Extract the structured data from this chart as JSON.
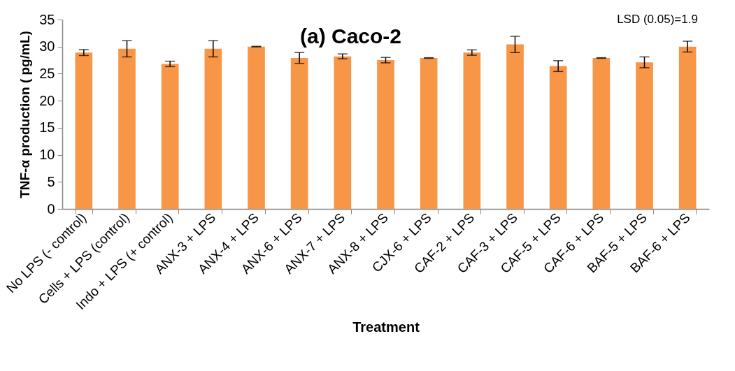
{
  "chart_data": {
    "type": "bar",
    "title": "(a) Caco-2",
    "xlabel": "Treatment",
    "ylabel": "TNF-α production ( pg/mL)",
    "categories": [
      "No LPS (- control)",
      "Cells + LPS (control)",
      "Indo + LPS (+ control)",
      "ANX-3 + LPS",
      "ANX-4 + LPS",
      "ANX-6 + LPS",
      "ANX-7 + LPS",
      "ANX-8 + LPS",
      "CJX-6 + LPS",
      "CAF-2 + LPS",
      "CAF-3 + LPS",
      "CAF-5 + LPS",
      "CAF-6 + LPS",
      "BAF-5 + LPS",
      "BAF-6 + LPS"
    ],
    "values": [
      28.9,
      29.6,
      26.8,
      29.6,
      30.0,
      27.9,
      28.2,
      27.5,
      27.9,
      28.9,
      30.4,
      26.4,
      27.9,
      27.1,
      30.0
    ],
    "errors": [
      0.55,
      1.5,
      0.5,
      1.5,
      0.05,
      1.0,
      0.45,
      0.5,
      0.05,
      0.5,
      1.5,
      1.0,
      0.05,
      1.0,
      1.0
    ],
    "color": "#f79646",
    "ylim": [
      0,
      35
    ],
    "yticks": [
      0,
      5,
      10,
      15,
      20,
      25,
      30,
      35
    ],
    "grid": false,
    "annotations": [
      "LSD (0.05)=1.9"
    ]
  }
}
